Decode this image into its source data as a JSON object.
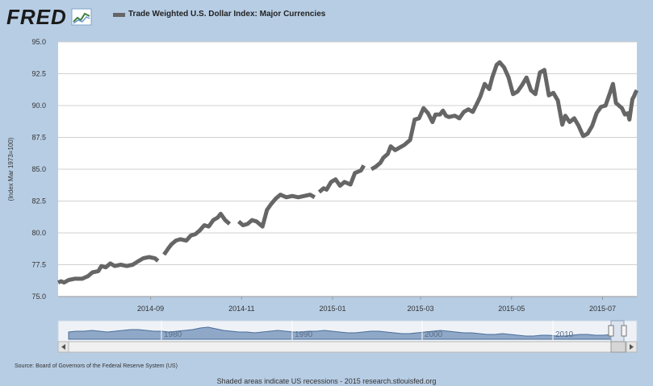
{
  "logo": {
    "text": "FRED",
    "icon": "fred-chart-mark-icon"
  },
  "legend": {
    "label": "Trade Weighted U.S. Dollar Index: Major Currencies",
    "color": "#666666"
  },
  "source": "Source: Board of Governors of the Federal Reserve System (US)",
  "footer": "Shaded areas indicate US recessions - 2015 research.stlouisfed.org",
  "colors": {
    "background": "#b7cde4",
    "plot": "#ffffff",
    "line": "#666666",
    "navigator_fill": "#6f8fb8"
  },
  "navigator": {
    "labels": [
      "1980",
      "1990",
      "2000",
      "2010"
    ]
  },
  "chart_data": {
    "type": "line",
    "ylabel": "(Index Mar 1973=100)",
    "ylim": [
      75.0,
      95.0
    ],
    "yticks": [
      "95.0",
      "92.5",
      "90.0",
      "87.5",
      "85.0",
      "82.5",
      "80.0",
      "77.5",
      "75.0"
    ],
    "xlim": [
      "2014-07-01",
      "2015-07-24"
    ],
    "xticks": [
      {
        "date": "2014-09-01",
        "label": "2014-09"
      },
      {
        "date": "2014-11-01",
        "label": "2014-11"
      },
      {
        "date": "2015-01-01",
        "label": "2015-01"
      },
      {
        "date": "2015-03-01",
        "label": "2015-03"
      },
      {
        "date": "2015-05-01",
        "label": "2015-05"
      },
      {
        "date": "2015-07-01",
        "label": "2015-07"
      }
    ],
    "grid": true,
    "legend_position": "top-left",
    "series": [
      {
        "name": "Trade Weighted U.S. Dollar Index: Major Currencies",
        "segments": [
          [
            [
              "2014-07-01",
              76.1
            ],
            [
              "2014-07-03",
              76.2
            ],
            [
              "2014-07-05",
              76.1
            ],
            [
              "2014-07-08",
              76.3
            ],
            [
              "2014-07-12",
              76.4
            ],
            [
              "2014-07-17",
              76.4
            ],
            [
              "2014-07-21",
              76.6
            ],
            [
              "2014-07-24",
              76.9
            ],
            [
              "2014-07-28",
              77.0
            ],
            [
              "2014-07-30",
              77.4
            ],
            [
              "2014-08-02",
              77.3
            ],
            [
              "2014-08-05",
              77.6
            ],
            [
              "2014-08-08",
              77.4
            ],
            [
              "2014-08-12",
              77.5
            ],
            [
              "2014-08-16",
              77.4
            ],
            [
              "2014-08-20",
              77.5
            ],
            [
              "2014-08-24",
              77.8
            ],
            [
              "2014-08-27",
              78.0
            ],
            [
              "2014-08-31",
              78.1
            ],
            [
              "2014-09-04",
              78.0
            ],
            [
              "2014-09-06",
              77.8
            ]
          ],
          [
            [
              "2014-09-10",
              78.3
            ],
            [
              "2014-09-13",
              78.8
            ],
            [
              "2014-09-15",
              79.1
            ],
            [
              "2014-09-18",
              79.4
            ],
            [
              "2014-09-21",
              79.5
            ],
            [
              "2014-09-25",
              79.4
            ],
            [
              "2014-09-28",
              79.8
            ],
            [
              "2014-10-01",
              79.9
            ],
            [
              "2014-10-04",
              80.2
            ],
            [
              "2014-10-07",
              80.6
            ],
            [
              "2014-10-10",
              80.5
            ],
            [
              "2014-10-13",
              81.0
            ],
            [
              "2014-10-16",
              81.2
            ],
            [
              "2014-10-18",
              81.5
            ],
            [
              "2014-10-21",
              81.0
            ],
            [
              "2014-10-24",
              80.7
            ]
          ],
          [
            [
              "2014-10-30",
              80.9
            ],
            [
              "2014-11-02",
              80.6
            ],
            [
              "2014-11-05",
              80.7
            ],
            [
              "2014-11-08",
              81.0
            ],
            [
              "2014-11-11",
              80.9
            ],
            [
              "2014-11-15",
              80.5
            ],
            [
              "2014-11-18",
              81.8
            ],
            [
              "2014-11-21",
              82.3
            ],
            [
              "2014-11-24",
              82.7
            ],
            [
              "2014-11-27",
              83.0
            ],
            [
              "2014-12-01",
              82.8
            ],
            [
              "2014-12-05",
              82.9
            ],
            [
              "2014-12-09",
              82.8
            ],
            [
              "2014-12-13",
              82.9
            ],
            [
              "2014-12-17",
              83.0
            ],
            [
              "2014-12-20",
              82.8
            ]
          ],
          [
            [
              "2014-12-23",
              83.2
            ],
            [
              "2014-12-26",
              83.5
            ],
            [
              "2014-12-28",
              83.4
            ],
            [
              "2014-12-31",
              84.0
            ],
            [
              "2015-01-03",
              84.2
            ],
            [
              "2015-01-06",
              83.7
            ],
            [
              "2015-01-09",
              84.0
            ],
            [
              "2015-01-13",
              83.8
            ],
            [
              "2015-01-16",
              84.7
            ],
            [
              "2015-01-20",
              84.9
            ],
            [
              "2015-01-22",
              85.3
            ]
          ],
          [
            [
              "2015-01-27",
              85.0
            ],
            [
              "2015-01-30",
              85.2
            ],
            [
              "2015-02-02",
              85.5
            ],
            [
              "2015-02-04",
              85.9
            ],
            [
              "2015-02-07",
              86.2
            ],
            [
              "2015-02-09",
              86.8
            ],
            [
              "2015-02-12",
              86.5
            ],
            [
              "2015-02-15",
              86.7
            ],
            [
              "2015-02-18",
              86.9
            ],
            [
              "2015-02-22",
              87.3
            ],
            [
              "2015-02-25",
              88.9
            ],
            [
              "2015-02-28",
              89.0
            ],
            [
              "2015-03-03",
              89.8
            ],
            [
              "2015-03-06",
              89.4
            ],
            [
              "2015-03-09",
              88.7
            ],
            [
              "2015-03-11",
              89.3
            ],
            [
              "2015-03-14",
              89.3
            ],
            [
              "2015-03-16",
              89.6
            ],
            [
              "2015-03-18",
              89.2
            ],
            [
              "2015-03-20",
              89.1
            ],
            [
              "2015-03-24",
              89.2
            ],
            [
              "2015-03-27",
              89.0
            ],
            [
              "2015-03-30",
              89.5
            ],
            [
              "2015-04-02",
              89.7
            ],
            [
              "2015-04-05",
              89.5
            ],
            [
              "2015-04-08",
              90.2
            ],
            [
              "2015-04-10",
              90.7
            ],
            [
              "2015-04-13",
              91.7
            ],
            [
              "2015-04-16",
              91.3
            ],
            [
              "2015-04-18",
              92.2
            ],
            [
              "2015-04-21",
              93.2
            ],
            [
              "2015-04-23",
              93.4
            ],
            [
              "2015-04-26",
              93.0
            ],
            [
              "2015-04-29",
              92.2
            ],
            [
              "2015-05-02",
              90.9
            ],
            [
              "2015-05-05",
              91.1
            ],
            [
              "2015-05-08",
              91.6
            ],
            [
              "2015-05-11",
              92.2
            ],
            [
              "2015-05-14",
              91.2
            ],
            [
              "2015-05-17",
              90.9
            ],
            [
              "2015-05-20",
              92.6
            ],
            [
              "2015-05-23",
              92.8
            ],
            [
              "2015-05-26",
              90.8
            ],
            [
              "2015-05-29",
              91.0
            ],
            [
              "2015-06-01",
              90.4
            ],
            [
              "2015-06-04",
              88.5
            ],
            [
              "2015-06-06",
              89.2
            ],
            [
              "2015-06-09",
              88.7
            ],
            [
              "2015-06-12",
              89.0
            ],
            [
              "2015-06-15",
              88.4
            ],
            [
              "2015-06-18",
              87.6
            ],
            [
              "2015-06-21",
              87.8
            ],
            [
              "2015-06-24",
              88.4
            ],
            [
              "2015-06-27",
              89.4
            ],
            [
              "2015-06-30",
              89.9
            ],
            [
              "2015-07-03",
              90.0
            ],
            [
              "2015-07-06",
              91.0
            ],
            [
              "2015-07-08",
              91.7
            ],
            [
              "2015-07-10",
              90.2
            ],
            [
              "2015-07-12",
              90.0
            ],
            [
              "2015-07-14",
              89.8
            ],
            [
              "2015-07-16",
              89.3
            ],
            [
              "2015-07-18",
              89.4
            ],
            [
              "2015-07-19",
              88.9
            ],
            [
              "2015-07-20",
              89.7
            ],
            [
              "2015-07-21",
              90.5
            ],
            [
              "2015-07-22",
              90.7
            ],
            [
              "2015-07-23",
              91.0
            ],
            [
              "2015-07-24",
              91.2
            ]
          ]
        ]
      }
    ]
  }
}
